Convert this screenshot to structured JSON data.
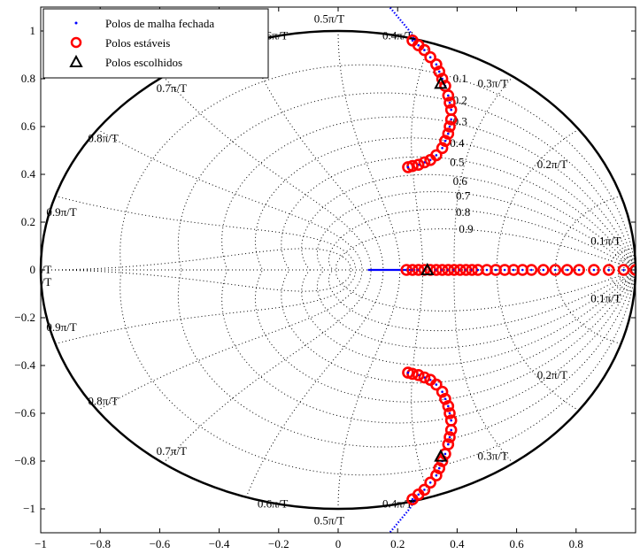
{
  "chart_data": {
    "type": "scatter",
    "title": "",
    "xlabel": "",
    "ylabel": "",
    "xlim": [
      -1,
      1
    ],
    "ylim": [
      -1.1,
      1.1
    ],
    "x_ticks": [
      -1,
      -0.8,
      -0.6,
      -0.4,
      -0.2,
      0,
      0.2,
      0.4,
      0.6,
      0.8
    ],
    "x_tick_labels": [
      "−1",
      "−0.8",
      "−0.6",
      "−0.4",
      "−0.2",
      "0",
      "0.2",
      "0.4",
      "0.6",
      "0.8"
    ],
    "y_ticks": [
      1,
      0.8,
      0.6,
      0.4,
      0.2,
      0,
      -0.2,
      -0.4,
      -0.6,
      -0.8,
      -1
    ],
    "y_tick_labels": [
      "1",
      "0.8",
      "0.6",
      "0.4",
      "0.2",
      "0",
      "−0.2",
      "−0.4",
      "−0.6",
      "−0.8",
      "−1"
    ],
    "grid": "zgrid",
    "legend_position": "top-left",
    "legend": [
      {
        "label": "Polos de malha fechada",
        "marker": "dot",
        "color": "#0000ff"
      },
      {
        "label": "Polos estáveis",
        "marker": "circle",
        "color": "#ff0000"
      },
      {
        "label": "Polos escolhidos",
        "marker": "triangle",
        "color": "#000000"
      }
    ],
    "unit_circle_color": "#000000",
    "natural_frequency_labels": [
      "0.1π/T",
      "0.2π/T",
      "0.3π/T",
      "0.4π/T",
      "0.5π/T",
      "0.6π/T",
      "0.7π/T",
      "0.8π/T",
      "0.9π/T",
      "1π/T"
    ],
    "damping_labels": [
      "0.1",
      "0.2",
      "0.3",
      "0.4",
      "0.5",
      "0.6",
      "0.7",
      "0.8",
      "0.9"
    ],
    "series": [
      {
        "name": "Polos de malha fechada",
        "style": "blue-dots",
        "color": "#0000ff",
        "branches": [
          {
            "x": [
              0.1,
              0.26
            ],
            "y": [
              0,
              0
            ]
          },
          {
            "x": [
              0.26,
              0.28,
              0.3,
              0.33,
              0.36,
              0.37,
              0.365,
              0.35,
              0.33,
              0.3,
              0.27,
              0.24,
              0.22
            ],
            "y": [
              0,
              0,
              0,
              0,
              0,
              0,
              0,
              0,
              0,
              0,
              0,
              0,
              0
            ]
          },
          {
            "x": [
              0.26,
              0.24,
              0.22,
              0.2,
              0.18,
              0.16,
              0.14
            ],
            "y": [
              0.96,
              1.0,
              1.03,
              1.06,
              1.09,
              1.12,
              1.15
            ]
          },
          {
            "x": [
              0.26,
              0.24,
              0.22,
              0.2,
              0.18,
              0.16,
              0.14
            ],
            "y": [
              -0.96,
              -1.0,
              -1.03,
              -1.06,
              -1.09,
              -1.12,
              -1.15
            ]
          }
        ]
      },
      {
        "name": "Polos estáveis",
        "style": "red-circles",
        "color": "#ff0000",
        "upper": {
          "x": [
            0.25,
            0.27,
            0.29,
            0.31,
            0.33,
            0.34,
            0.35,
            0.36,
            0.37,
            0.375,
            0.38,
            0.38,
            0.375,
            0.37,
            0.36,
            0.35,
            0.33,
            0.31,
            0.29,
            0.27,
            0.25,
            0.235
          ],
          "y": [
            0.96,
            0.94,
            0.92,
            0.89,
            0.86,
            0.83,
            0.8,
            0.77,
            0.73,
            0.7,
            0.67,
            0.63,
            0.6,
            0.57,
            0.54,
            0.51,
            0.48,
            0.46,
            0.45,
            0.44,
            0.435,
            0.43
          ]
        },
        "real": {
          "x": [
            0.23,
            0.25,
            0.27,
            0.29,
            0.31,
            0.33,
            0.35,
            0.37,
            0.39,
            0.41,
            0.43,
            0.45,
            0.47,
            0.5,
            0.53,
            0.56,
            0.59,
            0.62,
            0.65,
            0.69,
            0.73,
            0.77,
            0.81,
            0.86,
            0.91,
            0.96,
            1.0
          ],
          "y": [
            0,
            0,
            0,
            0,
            0,
            0,
            0,
            0,
            0,
            0,
            0,
            0,
            0,
            0,
            0,
            0,
            0,
            0,
            0,
            0,
            0,
            0,
            0,
            0,
            0,
            0,
            0
          ]
        }
      },
      {
        "name": "Polos escolhidos",
        "style": "black-triangles",
        "color": "#000000",
        "x": [
          0.345,
          0.3,
          0.345
        ],
        "y": [
          0.78,
          0,
          -0.78
        ]
      }
    ]
  }
}
